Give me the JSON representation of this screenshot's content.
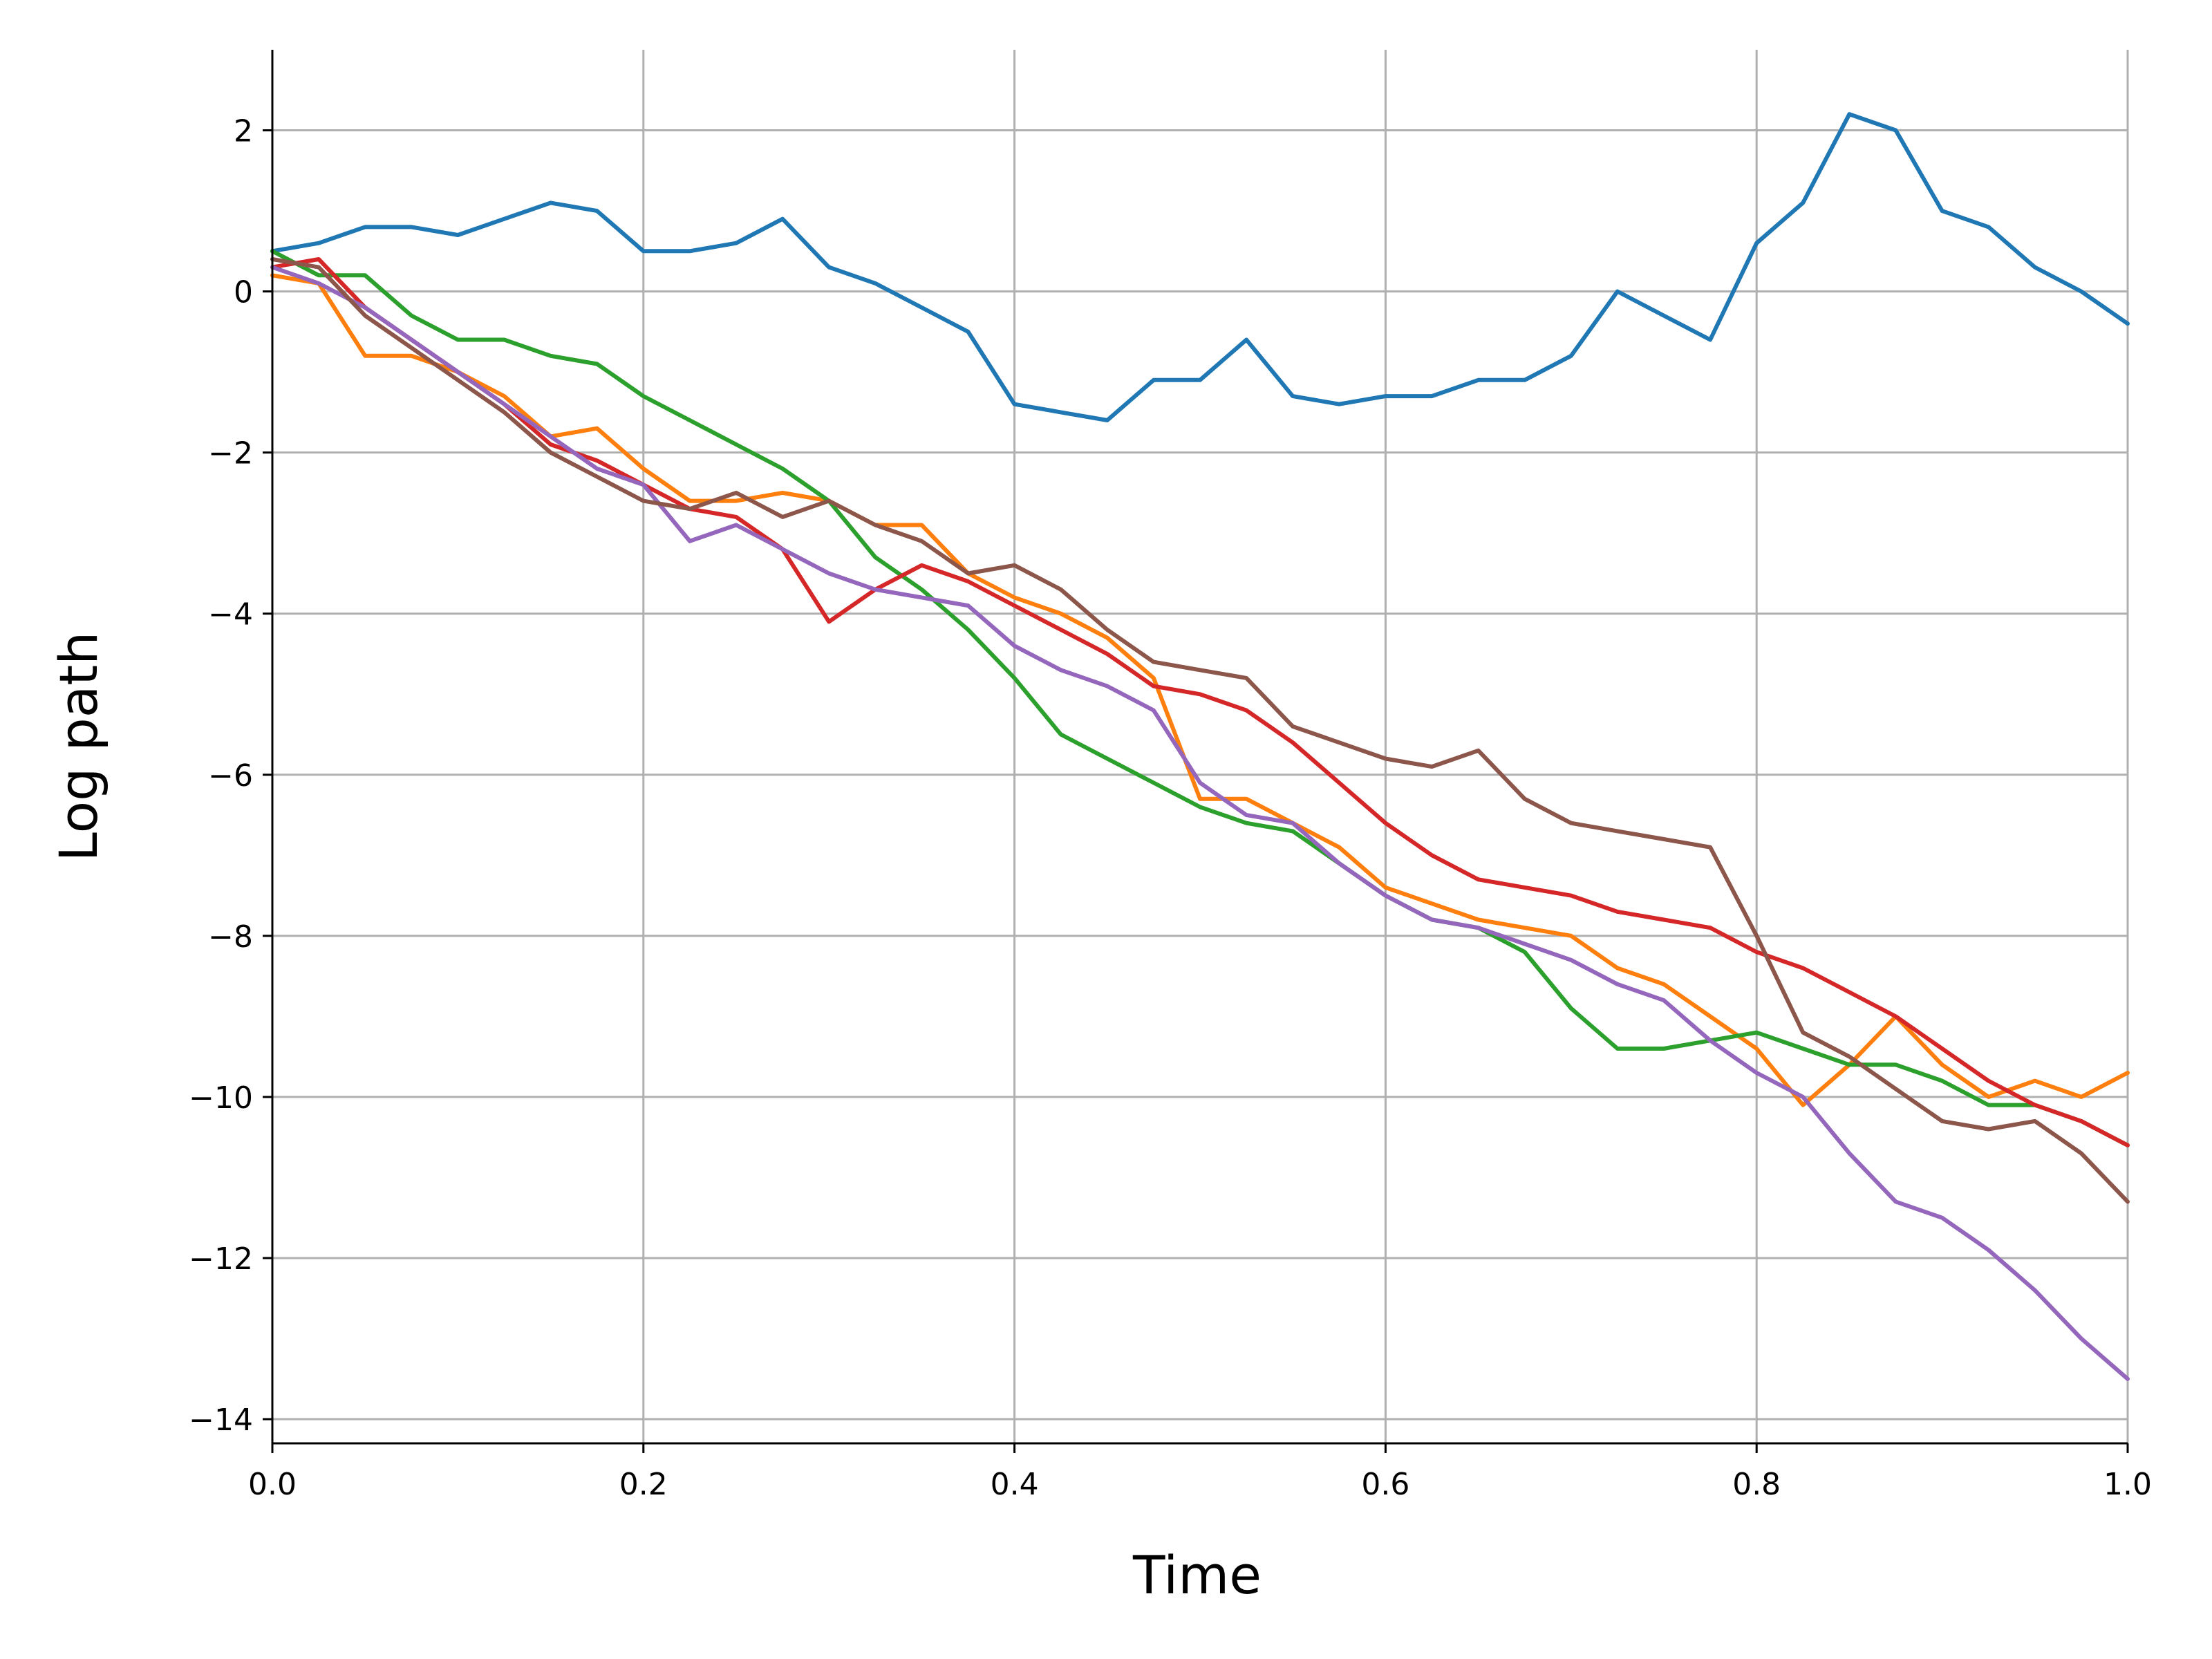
{
  "chart_data": {
    "type": "line",
    "title": "",
    "xlabel": "Time",
    "ylabel": "Log path",
    "xlim": [
      0.0,
      1.0
    ],
    "ylim": [
      -14.3,
      3.0
    ],
    "grid": true,
    "legend": "none",
    "x_ticks": [
      0.0,
      0.2,
      0.4,
      0.6,
      0.8,
      1.0
    ],
    "x_tick_labels": [
      "0.0",
      "0.2",
      "0.4",
      "0.6",
      "0.8",
      "1.0"
    ],
    "y_ticks": [
      2,
      0,
      -2,
      -4,
      -6,
      -8,
      -10,
      -12,
      -14
    ],
    "y_tick_labels": [
      "2",
      "0",
      "−2",
      "−4",
      "−6",
      "−8",
      "−10",
      "−12",
      "−14"
    ],
    "x": [
      0.0,
      0.025,
      0.05,
      0.075,
      0.1,
      0.125,
      0.15,
      0.175,
      0.2,
      0.225,
      0.25,
      0.275,
      0.3,
      0.325,
      0.35,
      0.375,
      0.4,
      0.425,
      0.45,
      0.475,
      0.5,
      0.525,
      0.55,
      0.575,
      0.6,
      0.625,
      0.65,
      0.675,
      0.7,
      0.725,
      0.75,
      0.775,
      0.8,
      0.825,
      0.85,
      0.875,
      0.9,
      0.925,
      0.95,
      0.975,
      1.0
    ],
    "series": [
      {
        "color": "#1f77b4",
        "values": [
          0.5,
          0.6,
          0.8,
          0.8,
          0.7,
          0.9,
          1.1,
          1.0,
          0.5,
          0.5,
          0.6,
          0.9,
          0.3,
          0.1,
          -0.2,
          -0.5,
          -1.4,
          -1.5,
          -1.6,
          -1.1,
          -1.1,
          -0.6,
          -1.3,
          -1.4,
          -1.3,
          -1.3,
          -1.1,
          -1.1,
          -0.8,
          0.0,
          -0.3,
          -0.6,
          0.6,
          1.1,
          2.2,
          2.0,
          1.0,
          0.8,
          0.3,
          0.0,
          -0.4
        ]
      },
      {
        "color": "#ff7f0e",
        "values": [
          0.2,
          0.1,
          -0.8,
          -0.8,
          -1.0,
          -1.3,
          -1.8,
          -1.7,
          -2.2,
          -2.6,
          -2.6,
          -2.5,
          -2.6,
          -2.9,
          -2.9,
          -3.5,
          -3.8,
          -4.0,
          -4.3,
          -4.8,
          -6.3,
          -6.3,
          -6.6,
          -6.9,
          -7.4,
          -7.6,
          -7.8,
          -7.9,
          -8.0,
          -8.4,
          -8.6,
          -9.0,
          -9.4,
          -10.1,
          -9.6,
          -9.0,
          -9.6,
          -10.0,
          -9.8,
          -10.0,
          -9.7
        ]
      },
      {
        "color": "#2ca02c",
        "values": [
          0.5,
          0.2,
          0.2,
          -0.3,
          -0.6,
          -0.6,
          -0.8,
          -0.9,
          -1.3,
          -1.6,
          -1.9,
          -2.2,
          -2.6,
          -3.3,
          -3.7,
          -4.2,
          -4.8,
          -5.5,
          -5.8,
          -6.1,
          -6.4,
          -6.6,
          -6.7,
          -7.1,
          -7.5,
          -7.8,
          -7.9,
          -8.2,
          -8.9,
          -9.4,
          -9.4,
          -9.3,
          -9.2,
          -9.4,
          -9.6,
          -9.6,
          -9.8,
          -10.1,
          -10.1,
          -10.3,
          -10.6
        ]
      },
      {
        "color": "#d62728",
        "values": [
          0.3,
          0.4,
          -0.2,
          -0.6,
          -1.0,
          -1.4,
          -1.9,
          -2.1,
          -2.4,
          -2.7,
          -2.8,
          -3.2,
          -4.1,
          -3.7,
          -3.4,
          -3.6,
          -3.9,
          -4.2,
          -4.5,
          -4.9,
          -5.0,
          -5.2,
          -5.6,
          -6.1,
          -6.6,
          -7.0,
          -7.3,
          -7.4,
          -7.5,
          -7.7,
          -7.8,
          -7.9,
          -8.2,
          -8.4,
          -8.7,
          -9.0,
          -9.4,
          -9.8,
          -10.1,
          -10.3,
          -10.6
        ]
      },
      {
        "color": "#9467bd",
        "values": [
          0.3,
          0.1,
          -0.2,
          -0.6,
          -1.0,
          -1.4,
          -1.8,
          -2.2,
          -2.4,
          -3.1,
          -2.9,
          -3.2,
          -3.5,
          -3.7,
          -3.8,
          -3.9,
          -4.4,
          -4.7,
          -4.9,
          -5.2,
          -6.1,
          -6.5,
          -6.6,
          -7.1,
          -7.5,
          -7.8,
          -7.9,
          -8.1,
          -8.3,
          -8.6,
          -8.8,
          -9.3,
          -9.7,
          -10.0,
          -10.7,
          -11.3,
          -11.5,
          -11.9,
          -12.4,
          -13.0,
          -13.5
        ]
      },
      {
        "color": "#8c564b",
        "values": [
          0.4,
          0.3,
          -0.3,
          -0.7,
          -1.1,
          -1.5,
          -2.0,
          -2.3,
          -2.6,
          -2.7,
          -2.5,
          -2.8,
          -2.6,
          -2.9,
          -3.1,
          -3.5,
          -3.4,
          -3.7,
          -4.2,
          -4.6,
          -4.7,
          -4.8,
          -5.4,
          -5.6,
          -5.8,
          -5.9,
          -5.7,
          -6.3,
          -6.6,
          -6.7,
          -6.8,
          -6.9,
          -8.0,
          -9.2,
          -9.5,
          -9.9,
          -10.3,
          -10.4,
          -10.3,
          -10.7,
          -11.3
        ]
      }
    ]
  }
}
